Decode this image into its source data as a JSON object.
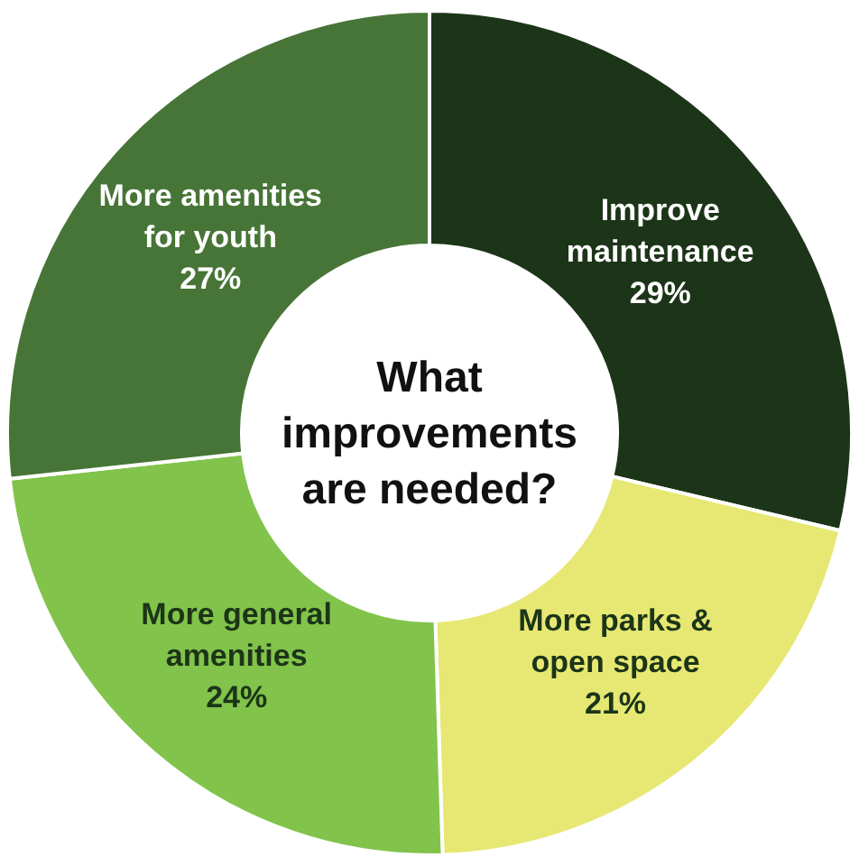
{
  "chart_data": {
    "type": "donut",
    "title": "What improvements are needed?",
    "categories": [
      "Improve maintenance",
      "More parks & open space",
      "More general amenities",
      "More amenities for youth"
    ],
    "values": [
      29,
      21,
      24,
      27
    ],
    "colors": [
      "#1c3518",
      "#e6e873",
      "#82c34b",
      "#477537"
    ],
    "value_labels": [
      "29%",
      "21%",
      "24%",
      "27%"
    ]
  }
}
